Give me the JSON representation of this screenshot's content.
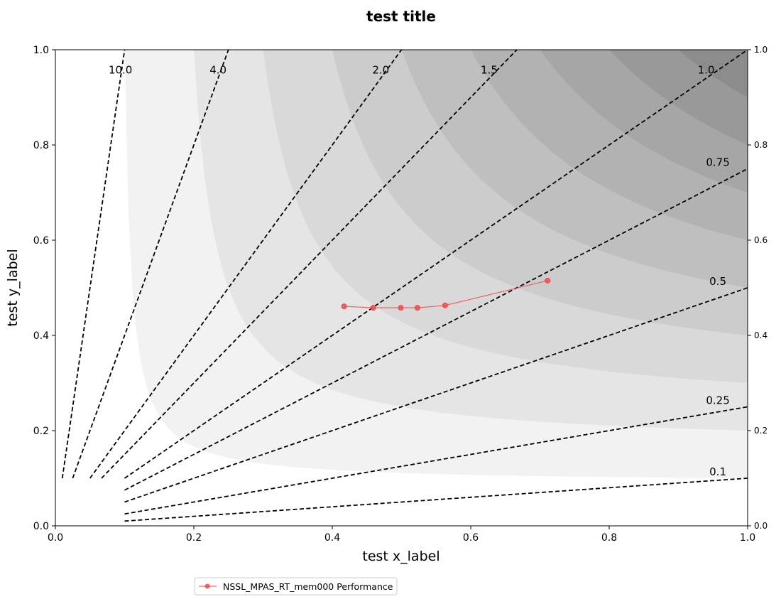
{
  "chart_data": {
    "type": "line",
    "title": "test title",
    "xlabel": "test x_label",
    "ylabel": "test y_label",
    "xlim": [
      0.0,
      1.0
    ],
    "ylim": [
      0.0,
      1.0
    ],
    "x_ticks": [
      "0.0",
      "0.2",
      "0.4",
      "0.6",
      "0.8",
      "1.0"
    ],
    "y_ticks": [
      "0.0",
      "0.2",
      "0.4",
      "0.6",
      "0.8",
      "1.0"
    ],
    "y_ticks_right": [
      "0.0",
      "0.2",
      "0.4",
      "0.6",
      "0.8",
      "1.0"
    ],
    "grid": false,
    "background": {
      "kind": "filled-contours",
      "levels": [
        0.1,
        0.2,
        0.3,
        0.4,
        0.5,
        0.6,
        0.7,
        0.8,
        0.9
      ],
      "colors": [
        "#ffffff",
        "#f2f2f2",
        "#e5e5e5",
        "#d9d9d9",
        "#cccccc",
        "#bfbfbf",
        "#b2b2b2",
        "#a6a6a6",
        "#999999",
        "#8c8c8c"
      ]
    },
    "reference_lines": [
      {
        "label": "10.0",
        "slope": 10.0
      },
      {
        "label": "4.0",
        "slope": 4.0
      },
      {
        "label": "2.0",
        "slope": 2.0
      },
      {
        "label": "1.5",
        "slope": 1.5
      },
      {
        "label": "1.0",
        "slope": 1.0
      },
      {
        "label": "0.75",
        "slope": 0.75
      },
      {
        "label": "0.5",
        "slope": 0.5
      },
      {
        "label": "0.25",
        "slope": 0.25
      },
      {
        "label": "0.1",
        "slope": 0.1
      }
    ],
    "series": [
      {
        "name": "NSSL_MPAS_RT_mem000 Performance",
        "color": "#f04a4a",
        "x": [
          0.417,
          0.459,
          0.499,
          0.523,
          0.563,
          0.711
        ],
        "y": [
          0.461,
          0.458,
          0.458,
          0.458,
          0.463,
          0.515
        ]
      }
    ],
    "legend": {
      "position": "bottom-center"
    }
  }
}
